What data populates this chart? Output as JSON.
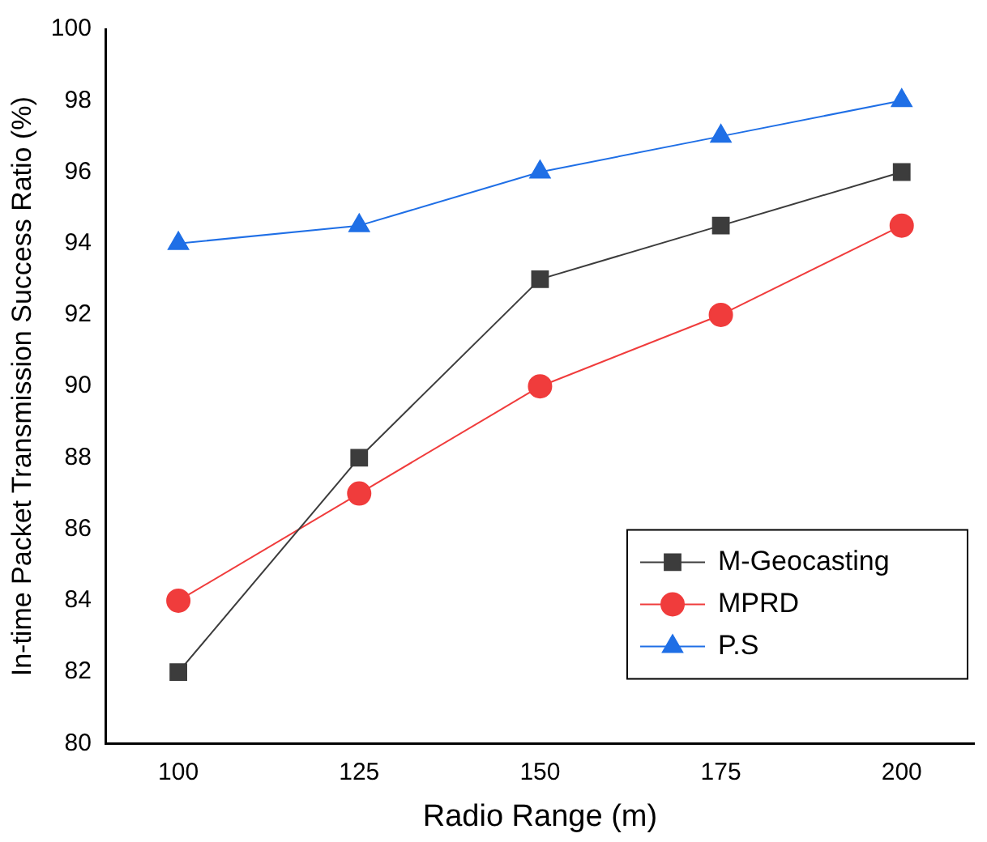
{
  "chart_data": {
    "type": "line",
    "xlabel": "Radio Range (m)",
    "ylabel": "In-time Packet Transmission Success Ratio (%)",
    "x": [
      100,
      125,
      150,
      175,
      200
    ],
    "xlim": [
      90,
      210
    ],
    "xticks": [
      100,
      125,
      150,
      175,
      200
    ],
    "ylim": [
      80,
      100
    ],
    "yticks": [
      80,
      82,
      84,
      86,
      88,
      90,
      92,
      94,
      96,
      98,
      100
    ],
    "grid": false,
    "legend": "bottom right",
    "series": [
      {
        "name": "M-Geocasting",
        "color": "#3c3c3c",
        "marker": "square",
        "values": [
          82,
          88,
          93,
          94.5,
          96
        ]
      },
      {
        "name": "MPRD",
        "color": "#f03c3c",
        "marker": "circle",
        "values": [
          84,
          87,
          90,
          92,
          94.5
        ]
      },
      {
        "name": "P.S",
        "color": "#1f6fe6",
        "marker": "triangle",
        "values": [
          94,
          94.5,
          96,
          97,
          98
        ]
      }
    ]
  }
}
